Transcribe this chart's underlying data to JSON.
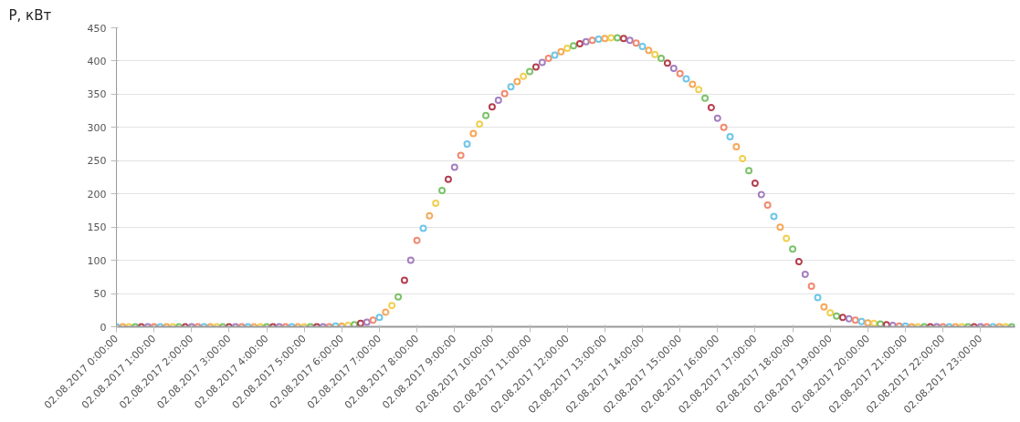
{
  "chart_data": {
    "type": "scatter",
    "ylabel": "P, кВт",
    "marker": "circle",
    "grid": "y",
    "xlim": [
      "2017-08-02T00:00",
      "2017-08-02T23:55"
    ],
    "ylim": [
      0,
      450
    ],
    "yticks": [
      0,
      50,
      100,
      150,
      200,
      250,
      300,
      350,
      400,
      450
    ],
    "xticks": [
      {
        "value": "2017-08-02T00:00",
        "label": "02.08.2017 0:00:00"
      },
      {
        "value": "2017-08-02T01:00",
        "label": "02.08.2017 1:00:00"
      },
      {
        "value": "2017-08-02T02:00",
        "label": "02.08.2017 2:00:00"
      },
      {
        "value": "2017-08-02T03:00",
        "label": "02.08.2017 3:00:00"
      },
      {
        "value": "2017-08-02T04:00",
        "label": "02.08.2017 4:00:00"
      },
      {
        "value": "2017-08-02T05:00",
        "label": "02.08.2017 5:00:00"
      },
      {
        "value": "2017-08-02T06:00",
        "label": "02.08.2017 6:00:00"
      },
      {
        "value": "2017-08-02T07:00",
        "label": "02.08.2017 7:00:00"
      },
      {
        "value": "2017-08-02T08:00",
        "label": "02.08.2017 8:00:00"
      },
      {
        "value": "2017-08-02T09:00",
        "label": "02.08.2017 9:00:00"
      },
      {
        "value": "2017-08-02T10:00",
        "label": "02.08.2017 10:00:00"
      },
      {
        "value": "2017-08-02T11:00",
        "label": "02.08.2017 11:00:00"
      },
      {
        "value": "2017-08-02T12:00",
        "label": "02.08.2017 12:00:00"
      },
      {
        "value": "2017-08-02T13:00",
        "label": "02.08.2017 13:00:00"
      },
      {
        "value": "2017-08-02T14:00",
        "label": "02.08.2017 14:00:00"
      },
      {
        "value": "2017-08-02T15:00",
        "label": "02.08.2017 15:00:00"
      },
      {
        "value": "2017-08-02T16:00",
        "label": "02.08.2017 16:00:00"
      },
      {
        "value": "2017-08-02T17:00",
        "label": "02.08.2017 17:00:00"
      },
      {
        "value": "2017-08-02T18:00",
        "label": "02.08.2017 18:00:00"
      },
      {
        "value": "2017-08-02T19:00",
        "label": "02.08.2017 19:00:00"
      },
      {
        "value": "2017-08-02T20:00",
        "label": "02.08.2017 20:00:00"
      },
      {
        "value": "2017-08-02T21:00",
        "label": "02.08.2017 21:00:00"
      },
      {
        "value": "2017-08-02T22:00",
        "label": "02.08.2017 22:00:00"
      },
      {
        "value": "2017-08-02T23:00",
        "label": "02.08.2017 23:00:00"
      }
    ],
    "x": [
      "2017-08-02T00:00",
      "2017-08-02T00:10",
      "2017-08-02T00:20",
      "2017-08-02T00:30",
      "2017-08-02T00:40",
      "2017-08-02T00:50",
      "2017-08-02T01:00",
      "2017-08-02T01:10",
      "2017-08-02T01:20",
      "2017-08-02T01:30",
      "2017-08-02T01:40",
      "2017-08-02T01:50",
      "2017-08-02T02:00",
      "2017-08-02T02:10",
      "2017-08-02T02:20",
      "2017-08-02T02:30",
      "2017-08-02T02:40",
      "2017-08-02T02:50",
      "2017-08-02T03:00",
      "2017-08-02T03:10",
      "2017-08-02T03:20",
      "2017-08-02T03:30",
      "2017-08-02T03:40",
      "2017-08-02T03:50",
      "2017-08-02T04:00",
      "2017-08-02T04:10",
      "2017-08-02T04:20",
      "2017-08-02T04:30",
      "2017-08-02T04:40",
      "2017-08-02T04:50",
      "2017-08-02T05:00",
      "2017-08-02T05:10",
      "2017-08-02T05:20",
      "2017-08-02T05:30",
      "2017-08-02T05:40",
      "2017-08-02T05:50",
      "2017-08-02T06:00",
      "2017-08-02T06:10",
      "2017-08-02T06:20",
      "2017-08-02T06:30",
      "2017-08-02T06:40",
      "2017-08-02T06:50",
      "2017-08-02T07:00",
      "2017-08-02T07:10",
      "2017-08-02T07:20",
      "2017-08-02T07:30",
      "2017-08-02T07:40",
      "2017-08-02T07:50",
      "2017-08-02T08:00",
      "2017-08-02T08:10",
      "2017-08-02T08:20",
      "2017-08-02T08:30",
      "2017-08-02T08:40",
      "2017-08-02T08:50",
      "2017-08-02T09:00",
      "2017-08-02T09:10",
      "2017-08-02T09:20",
      "2017-08-02T09:30",
      "2017-08-02T09:40",
      "2017-08-02T09:50",
      "2017-08-02T10:00",
      "2017-08-02T10:10",
      "2017-08-02T10:20",
      "2017-08-02T10:30",
      "2017-08-02T10:40",
      "2017-08-02T10:50",
      "2017-08-02T11:00",
      "2017-08-02T11:10",
      "2017-08-02T11:20",
      "2017-08-02T11:30",
      "2017-08-02T11:40",
      "2017-08-02T11:50",
      "2017-08-02T12:00",
      "2017-08-02T12:10",
      "2017-08-02T12:20",
      "2017-08-02T12:30",
      "2017-08-02T12:40",
      "2017-08-02T12:50",
      "2017-08-02T13:00",
      "2017-08-02T13:10",
      "2017-08-02T13:20",
      "2017-08-02T13:30",
      "2017-08-02T13:40",
      "2017-08-02T13:50",
      "2017-08-02T14:00",
      "2017-08-02T14:10",
      "2017-08-02T14:20",
      "2017-08-02T14:30",
      "2017-08-02T14:40",
      "2017-08-02T14:50",
      "2017-08-02T15:00",
      "2017-08-02T15:10",
      "2017-08-02T15:20",
      "2017-08-02T15:30",
      "2017-08-02T15:40",
      "2017-08-02T15:50",
      "2017-08-02T16:00",
      "2017-08-02T16:10",
      "2017-08-02T16:20",
      "2017-08-02T16:30",
      "2017-08-02T16:40",
      "2017-08-02T16:50",
      "2017-08-02T17:00",
      "2017-08-02T17:10",
      "2017-08-02T17:20",
      "2017-08-02T17:30",
      "2017-08-02T17:40",
      "2017-08-02T17:50",
      "2017-08-02T18:00",
      "2017-08-02T18:10",
      "2017-08-02T18:20",
      "2017-08-02T18:30",
      "2017-08-02T18:40",
      "2017-08-02T18:50",
      "2017-08-02T19:00",
      "2017-08-02T19:10",
      "2017-08-02T19:20",
      "2017-08-02T19:30",
      "2017-08-02T19:40",
      "2017-08-02T19:50",
      "2017-08-02T20:00",
      "2017-08-02T20:10",
      "2017-08-02T20:20",
      "2017-08-02T20:30",
      "2017-08-02T20:40",
      "2017-08-02T20:50",
      "2017-08-02T21:00",
      "2017-08-02T21:10",
      "2017-08-02T21:20",
      "2017-08-02T21:30",
      "2017-08-02T21:40",
      "2017-08-02T21:50",
      "2017-08-02T22:00",
      "2017-08-02T22:10",
      "2017-08-02T22:20",
      "2017-08-02T22:30",
      "2017-08-02T22:40",
      "2017-08-02T22:50",
      "2017-08-02T23:00",
      "2017-08-02T23:10",
      "2017-08-02T23:20",
      "2017-08-02T23:30",
      "2017-08-02T23:40",
      "2017-08-02T23:50"
    ],
    "values": [
      0,
      0,
      0,
      0,
      0,
      0,
      0,
      0,
      0,
      0,
      0,
      0,
      0,
      0,
      0,
      0,
      0,
      0,
      0,
      0,
      0,
      0,
      0,
      0,
      0,
      0,
      0,
      0,
      0,
      0,
      0,
      0,
      0,
      0,
      0,
      1,
      1,
      2,
      3,
      5,
      7,
      10,
      14,
      22,
      32,
      45,
      70,
      100,
      130,
      148,
      167,
      186,
      205,
      222,
      240,
      258,
      275,
      291,
      305,
      318,
      331,
      341,
      351,
      361,
      369,
      377,
      384,
      391,
      398,
      404,
      409,
      414,
      419,
      423,
      426,
      429,
      431,
      433,
      434,
      435,
      435,
      434,
      431,
      427,
      422,
      416,
      410,
      404,
      397,
      389,
      381,
      373,
      365,
      357,
      344,
      330,
      314,
      300,
      286,
      271,
      253,
      235,
      216,
      199,
      183,
      166,
      150,
      133,
      117,
      98,
      79,
      61,
      44,
      30,
      21,
      16,
      14,
      12,
      10,
      8,
      6,
      5,
      4,
      3,
      2,
      1,
      1,
      0,
      0,
      0,
      0,
      0,
      0,
      0,
      0,
      0,
      0,
      0,
      0,
      0,
      0,
      0,
      0,
      0
    ],
    "colors": [
      "#6ec6e8",
      "#f5a85a",
      "#f0d050",
      "#7cc36b",
      "#b5404f",
      "#a57fc0",
      "#f08a70",
      "#6ec6e8",
      "#f5a85a",
      "#f0d050",
      "#7cc36b",
      "#b5404f",
      "#a57fc0",
      "#f08a70",
      "#6ec6e8",
      "#f5a85a",
      "#f0d050",
      "#7cc36b",
      "#b5404f",
      "#a57fc0",
      "#f08a70",
      "#6ec6e8",
      "#f5a85a",
      "#f0d050",
      "#7cc36b",
      "#b5404f",
      "#a57fc0",
      "#f08a70",
      "#6ec6e8",
      "#f5a85a",
      "#f0d050",
      "#7cc36b",
      "#b5404f",
      "#a57fc0",
      "#f08a70",
      "#6ec6e8",
      "#f5a85a",
      "#f0d050",
      "#7cc36b",
      "#b5404f",
      "#a57fc0",
      "#f08a70",
      "#6ec6e8",
      "#f5a85a",
      "#f0d050",
      "#7cc36b",
      "#b5404f",
      "#a57fc0",
      "#f08a70",
      "#6ec6e8",
      "#f5a85a",
      "#f0d050",
      "#7cc36b",
      "#b5404f",
      "#a57fc0",
      "#f08a70",
      "#6ec6e8",
      "#f5a85a",
      "#f0d050",
      "#7cc36b",
      "#b5404f",
      "#a57fc0",
      "#f08a70",
      "#6ec6e8",
      "#f5a85a",
      "#f0d050",
      "#7cc36b",
      "#b5404f",
      "#a57fc0",
      "#f08a70",
      "#6ec6e8",
      "#f5a85a",
      "#f0d050",
      "#7cc36b",
      "#b5404f",
      "#a57fc0",
      "#f08a70",
      "#6ec6e8",
      "#f5a85a",
      "#f0d050",
      "#7cc36b",
      "#b5404f",
      "#a57fc0",
      "#f08a70",
      "#6ec6e8",
      "#f5a85a",
      "#f0d050",
      "#7cc36b",
      "#b5404f",
      "#a57fc0",
      "#f08a70",
      "#6ec6e8",
      "#f5a85a",
      "#f0d050",
      "#7cc36b",
      "#b5404f",
      "#a57fc0",
      "#f08a70",
      "#6ec6e8",
      "#f5a85a",
      "#f0d050",
      "#7cc36b",
      "#b5404f",
      "#a57fc0",
      "#f08a70",
      "#6ec6e8",
      "#f5a85a",
      "#f0d050",
      "#7cc36b",
      "#b5404f",
      "#a57fc0",
      "#f08a70",
      "#6ec6e8",
      "#f5a85a",
      "#f0d050",
      "#7cc36b",
      "#b5404f",
      "#a57fc0",
      "#f08a70",
      "#6ec6e8",
      "#f5a85a",
      "#f0d050",
      "#7cc36b",
      "#b5404f",
      "#a57fc0",
      "#f08a70",
      "#6ec6e8",
      "#f5a85a",
      "#f0d050",
      "#7cc36b",
      "#b5404f",
      "#a57fc0",
      "#f08a70",
      "#6ec6e8",
      "#f5a85a",
      "#f0d050",
      "#7cc36b",
      "#b5404f",
      "#a57fc0",
      "#f08a70",
      "#6ec6e8",
      "#f5a85a",
      "#f0d050",
      "#7cc36b"
    ]
  }
}
